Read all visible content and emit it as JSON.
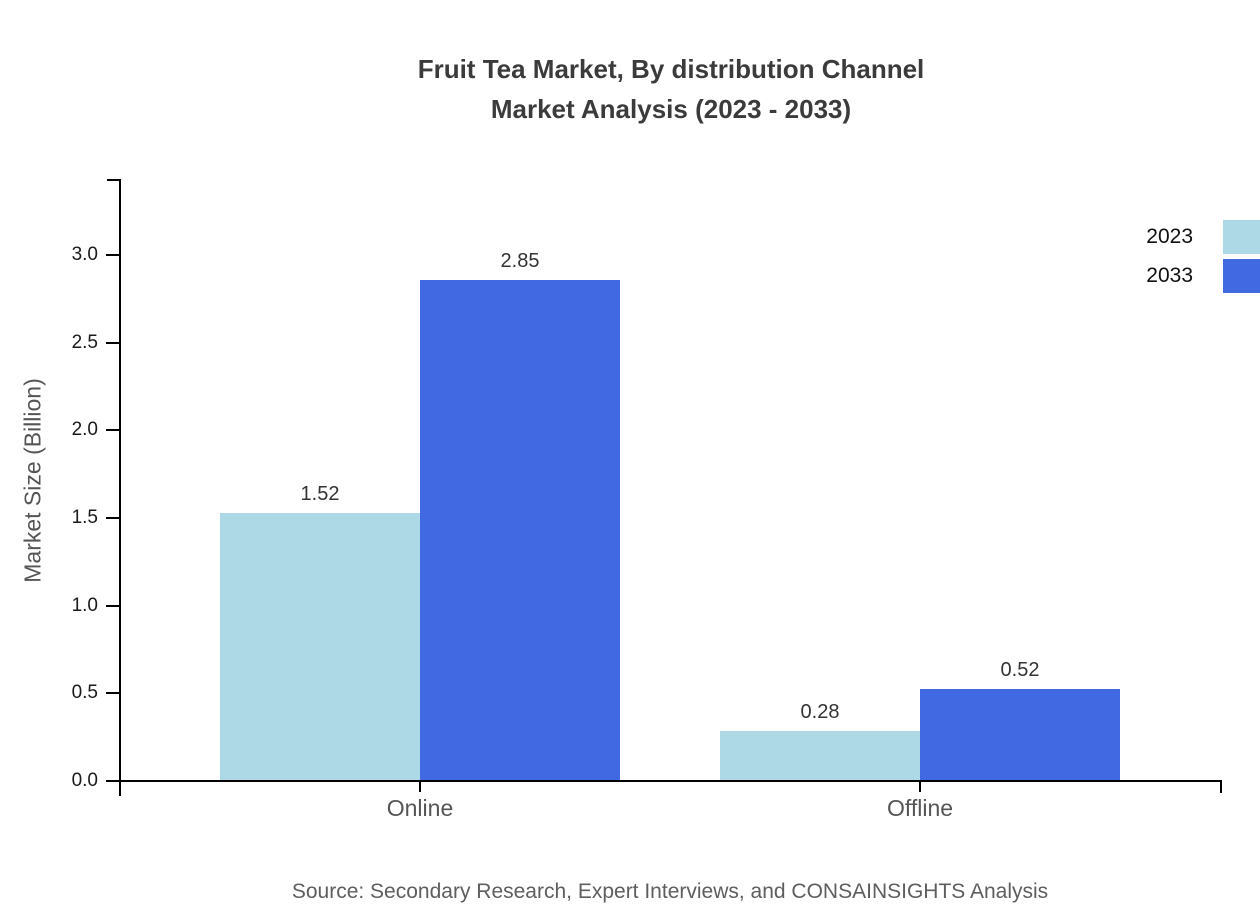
{
  "chart_data": {
    "type": "bar",
    "title": "Fruit Tea Market, By distribution Channel",
    "subtitle": "Market Analysis (2023 - 2033)",
    "ylabel": "Market Size (Billion)",
    "categories": [
      "Online",
      "Offline"
    ],
    "series": [
      {
        "name": "2023",
        "color": "#ADD8E6",
        "values": [
          1.52,
          0.28
        ]
      },
      {
        "name": "2033",
        "color": "#4169E1",
        "values": [
          2.85,
          0.52
        ]
      }
    ],
    "yticks": [
      0.0,
      0.5,
      1.0,
      1.5,
      2.0,
      2.5,
      3.0
    ],
    "ylim": [
      0,
      3.4
    ],
    "grid": false,
    "legend_position": "top-right",
    "value_labels_decimals": 2,
    "source": "Source: Secondary Research, Expert Interviews, and CONSAINSIGHTS Analysis"
  },
  "colors": {
    "axis": "#000000",
    "title_text": "#3b3b3b",
    "tick_text": "#1a1a1a",
    "category_text": "#555555",
    "value_text": "#333333",
    "source_text": "#5e5e5e"
  }
}
